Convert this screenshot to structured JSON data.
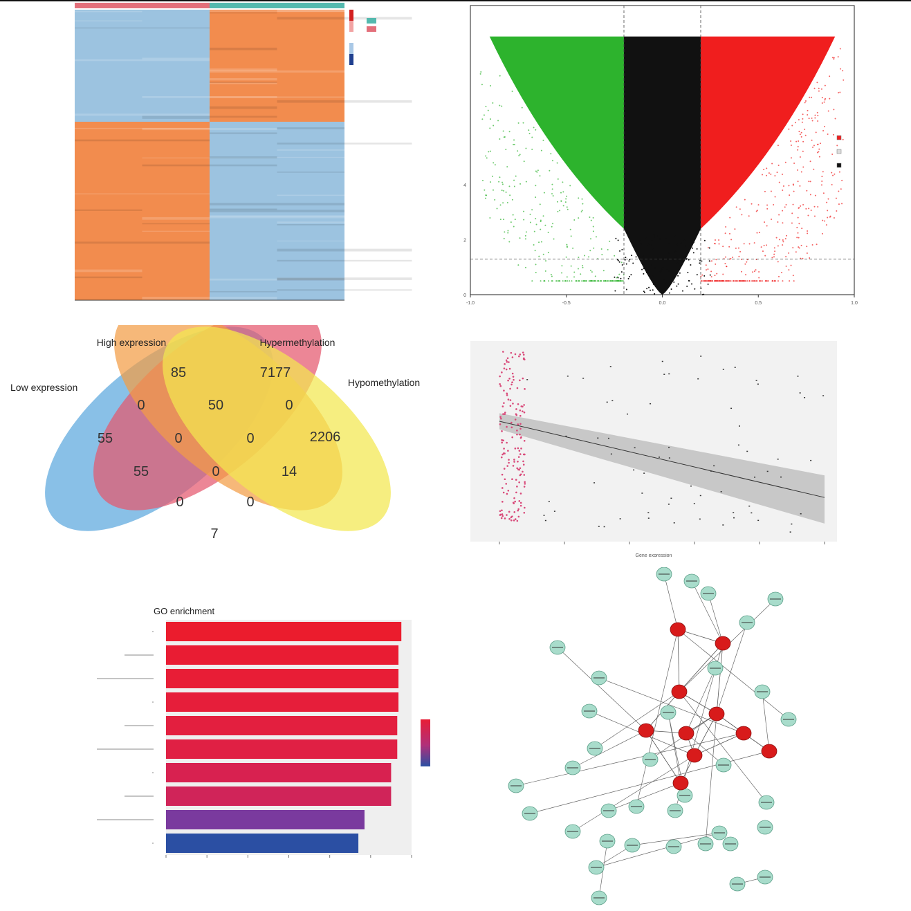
{
  "chart_data": [
    {
      "type": "heatmap",
      "title": "",
      "columns": 4,
      "color_high": "#F28C4E",
      "color_low": "#9CC3E0",
      "group_colors": [
        "#E36F7A",
        "#54B9AE"
      ]
    },
    {
      "type": "scatter",
      "subtype": "volcano",
      "xlim": [
        -1.0,
        1.0
      ],
      "ylim": [
        0,
        10
      ],
      "x_ticks": [
        -1.0,
        -0.5,
        0.0,
        0.5,
        1.0
      ],
      "y_ticks": [
        0,
        2,
        4
      ],
      "thresholds_x": [
        -0.2,
        0.2
      ],
      "threshold_y": 1.3,
      "colors": {
        "up": "#F01E1E",
        "down": "#2DB32D",
        "ns": "#111111"
      }
    },
    {
      "type": "venn",
      "sets": [
        "Low expression",
        "High expression",
        "Hypermethylation",
        "Hypomethylation"
      ],
      "regions": [
        "55",
        "85",
        "7177",
        "2206",
        "0",
        "50",
        "0",
        "0",
        "0",
        "55",
        "0",
        "14",
        "0",
        "0",
        "7"
      ],
      "colors": [
        "#5BA7DE",
        "#E4586E",
        "#F29C45",
        "#F3E84F"
      ]
    },
    {
      "type": "scatter",
      "subtype": "correlation",
      "xlabel": "Gene expression",
      "trend": {
        "y_start": 0.6,
        "y_end": 0.22
      },
      "point_color": "#D94A7A"
    },
    {
      "type": "bar",
      "orientation": "horizontal",
      "title": "GO enrichment",
      "values": [
        5.75,
        5.68,
        5.68,
        5.68,
        5.65,
        5.65,
        5.5,
        5.5,
        4.85,
        4.7
      ],
      "xlim": [
        0,
        6
      ],
      "colors": [
        "#EB1C2D",
        "#E91C33",
        "#E81D36",
        "#E61E3A",
        "#E31F3F",
        "#E02044",
        "#D82150",
        "#D02459",
        "#7A3A9E",
        "#2B4FA3"
      ]
    },
    {
      "type": "network",
      "hub_color": "#D81B1B",
      "node_color": "#A8DCCB",
      "hub_count": 10
    }
  ]
}
